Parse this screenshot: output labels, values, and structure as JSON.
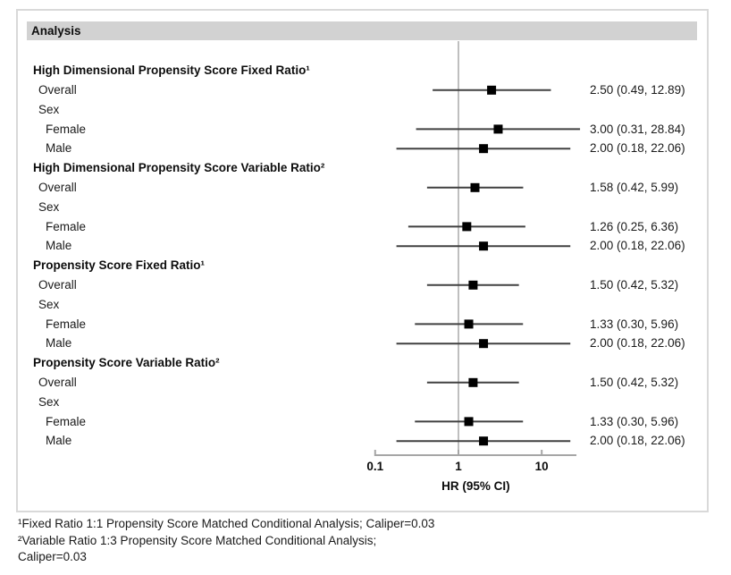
{
  "header": {
    "label": "Analysis"
  },
  "chart_data": {
    "type": "forest",
    "xscale": "log10",
    "xlabel": "HR (95% CI)",
    "xticks": [
      "0.1",
      "1",
      "10"
    ],
    "xtick_values": [
      0.1,
      1,
      10
    ],
    "axis_range": [
      0.1,
      26.1
    ],
    "ref_line": 1,
    "legend_position": "none",
    "grid": false,
    "groups": [
      {
        "title": "High Dimensional Propensity Score Fixed Ratio¹",
        "rows": [
          {
            "label": "Overall",
            "indent": 1,
            "hr": 2.5,
            "lo": 0.49,
            "hi": 12.89,
            "text": "2.50 (0.49, 12.89)"
          },
          {
            "label": "Sex",
            "indent": 1
          },
          {
            "label": "Female",
            "indent": 2,
            "hr": 3.0,
            "lo": 0.31,
            "hi": 28.84,
            "text": "3.00 (0.31, 28.84)"
          },
          {
            "label": "Male",
            "indent": 2,
            "hr": 2.0,
            "lo": 0.18,
            "hi": 22.06,
            "text": "2.00 (0.18, 22.06)"
          }
        ]
      },
      {
        "title": "High Dimensional Propensity Score Variable Ratio²",
        "rows": [
          {
            "label": "Overall",
            "indent": 1,
            "hr": 1.58,
            "lo": 0.42,
            "hi": 5.99,
            "text": "1.58 (0.42, 5.99)"
          },
          {
            "label": "Sex",
            "indent": 1
          },
          {
            "label": "Female",
            "indent": 2,
            "hr": 1.26,
            "lo": 0.25,
            "hi": 6.36,
            "text": "1.26 (0.25, 6.36)"
          },
          {
            "label": "Male",
            "indent": 2,
            "hr": 2.0,
            "lo": 0.18,
            "hi": 22.06,
            "text": "2.00 (0.18, 22.06)"
          }
        ]
      },
      {
        "title": "Propensity Score Fixed Ratio¹",
        "rows": [
          {
            "label": "Overall",
            "indent": 1,
            "hr": 1.5,
            "lo": 0.42,
            "hi": 5.32,
            "text": "1.50 (0.42, 5.32)"
          },
          {
            "label": "Sex",
            "indent": 1
          },
          {
            "label": "Female",
            "indent": 2,
            "hr": 1.33,
            "lo": 0.3,
            "hi": 5.96,
            "text": "1.33 (0.30, 5.96)"
          },
          {
            "label": "Male",
            "indent": 2,
            "hr": 2.0,
            "lo": 0.18,
            "hi": 22.06,
            "text": "2.00 (0.18, 22.06)"
          }
        ]
      },
      {
        "title": "Propensity Score Variable Ratio²",
        "rows": [
          {
            "label": "Overall",
            "indent": 1,
            "hr": 1.5,
            "lo": 0.42,
            "hi": 5.32,
            "text": "1.50 (0.42, 5.32)"
          },
          {
            "label": "Sex",
            "indent": 1
          },
          {
            "label": "Female",
            "indent": 2,
            "hr": 1.33,
            "lo": 0.3,
            "hi": 5.96,
            "text": "1.33 (0.30, 5.96)"
          },
          {
            "label": "Male",
            "indent": 2,
            "hr": 2.0,
            "lo": 0.18,
            "hi": 22.06,
            "text": "2.00 (0.18, 22.06)"
          }
        ]
      }
    ]
  },
  "footnotes": [
    "¹Fixed Ratio 1:1 Propensity Score Matched Conditional Analysis; Caliper=0.03",
    "²Variable Ratio 1:3 Propensity Score Matched Conditional Analysis;",
    "Caliper=0.03"
  ],
  "colors": {
    "header_bg": "#d2d2d2",
    "box_border": "#d9d9d9",
    "ref_line": "#bfbfbf",
    "axis": "#a6a6a6",
    "ci_line": "#404040",
    "marker": "#000000"
  }
}
